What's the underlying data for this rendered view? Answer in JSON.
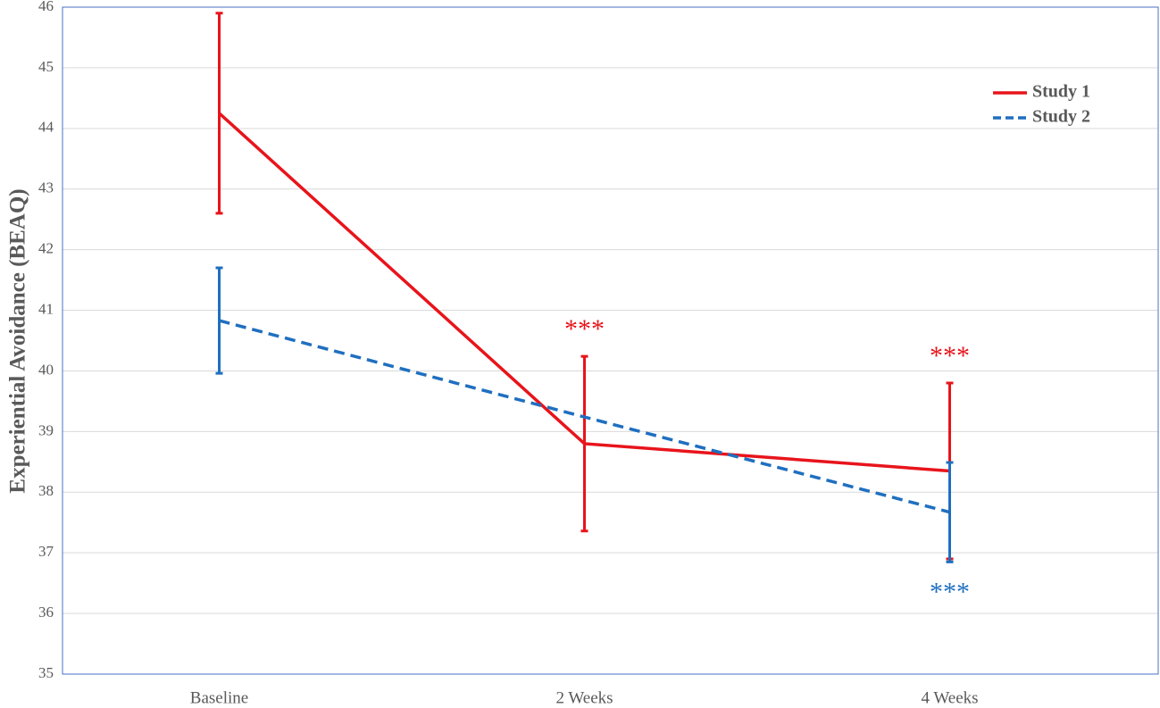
{
  "chart_data": {
    "type": "line",
    "y_label": "Experiential Avoidance (BEAQ)",
    "categories": [
      "Baseline",
      "2 Weeks",
      "4 Weeks"
    ],
    "series": [
      {
        "name": "Study 1",
        "color": "#e8141b",
        "dash": false,
        "values": [
          44.25,
          38.8,
          38.35
        ],
        "errors": [
          1.65,
          1.44,
          1.45
        ]
      },
      {
        "name": "Study 2",
        "color": "#1f6fc0",
        "dash": true,
        "values": [
          40.83,
          39.24,
          37.67
        ],
        "errors": [
          0.87,
          null,
          0.82
        ]
      }
    ],
    "annotations": [
      {
        "text": "***",
        "series": 0,
        "category": 1,
        "position": "above"
      },
      {
        "text": "***",
        "series": 0,
        "category": 2,
        "position": "above"
      },
      {
        "text": "***",
        "series": 1,
        "category": 2,
        "position": "below"
      }
    ],
    "ylim": [
      35,
      46
    ],
    "yticks": [
      35,
      36,
      37,
      38,
      39,
      40,
      41,
      42,
      43,
      44,
      45,
      46
    ],
    "grid": true,
    "legend": "upper right"
  }
}
